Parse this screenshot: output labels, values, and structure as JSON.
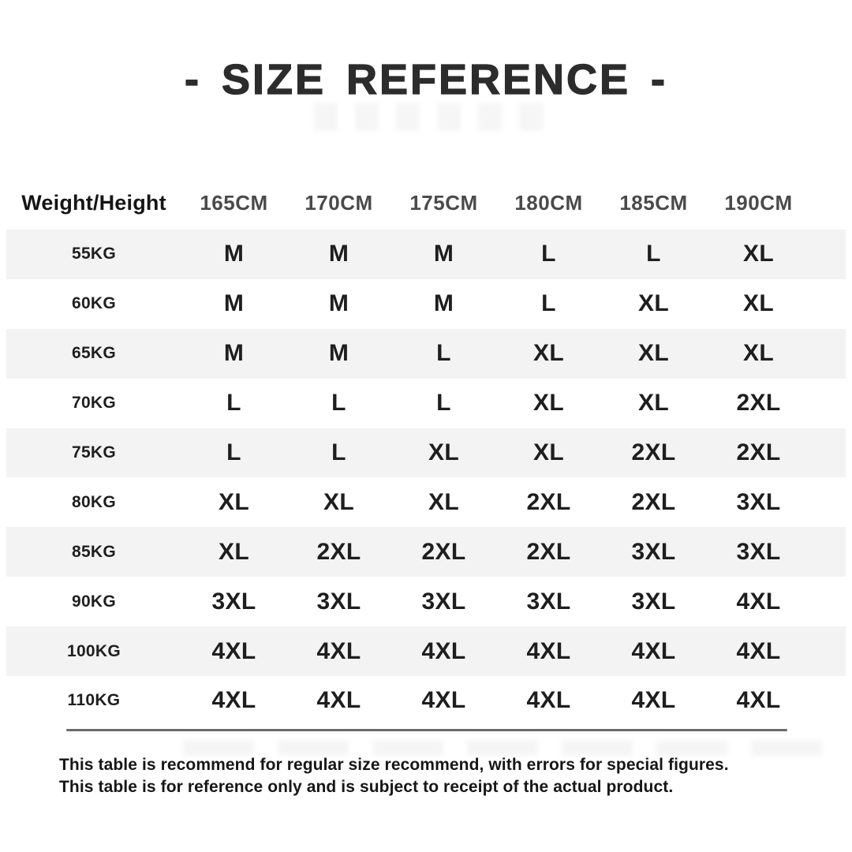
{
  "title": "- SIZE REFERENCE -",
  "table": {
    "corner_header": "Weight/Height",
    "column_headers": [
      "165CM",
      "170CM",
      "175CM",
      "180CM",
      "185CM",
      "190CM"
    ],
    "rows": [
      {
        "label": "55KG",
        "values": [
          "M",
          "M",
          "M",
          "L",
          "L",
          "XL"
        ]
      },
      {
        "label": "60KG",
        "values": [
          "M",
          "M",
          "M",
          "L",
          "XL",
          "XL"
        ]
      },
      {
        "label": "65KG",
        "values": [
          "M",
          "M",
          "L",
          "XL",
          "XL",
          "XL"
        ]
      },
      {
        "label": "70KG",
        "values": [
          "L",
          "L",
          "L",
          "XL",
          "XL",
          "2XL"
        ]
      },
      {
        "label": "75KG",
        "values": [
          "L",
          "L",
          "XL",
          "XL",
          "2XL",
          "2XL"
        ]
      },
      {
        "label": "80KG",
        "values": [
          "XL",
          "XL",
          "XL",
          "2XL",
          "2XL",
          "3XL"
        ]
      },
      {
        "label": "85KG",
        "values": [
          "XL",
          "2XL",
          "2XL",
          "2XL",
          "3XL",
          "3XL"
        ]
      },
      {
        "label": "90KG",
        "values": [
          "3XL",
          "3XL",
          "3XL",
          "3XL",
          "3XL",
          "4XL"
        ]
      },
      {
        "label": "100KG",
        "values": [
          "4XL",
          "4XL",
          "4XL",
          "4XL",
          "4XL",
          "4XL"
        ]
      },
      {
        "label": "110KG",
        "values": [
          "4XL",
          "4XL",
          "4XL",
          "4XL",
          "4XL",
          "4XL"
        ]
      }
    ]
  },
  "footer": {
    "line1": "This table is recommend for regular size recommend, with errors for special figures.",
    "line2": "This table is for reference only and is subject to receipt of the actual product."
  },
  "colors": {
    "text_dark": "#1e1e1e",
    "header_gray": "#4a4a4a",
    "stripe": "#f3f3f3",
    "rule": "#6b6b6b",
    "background": "#ffffff"
  }
}
